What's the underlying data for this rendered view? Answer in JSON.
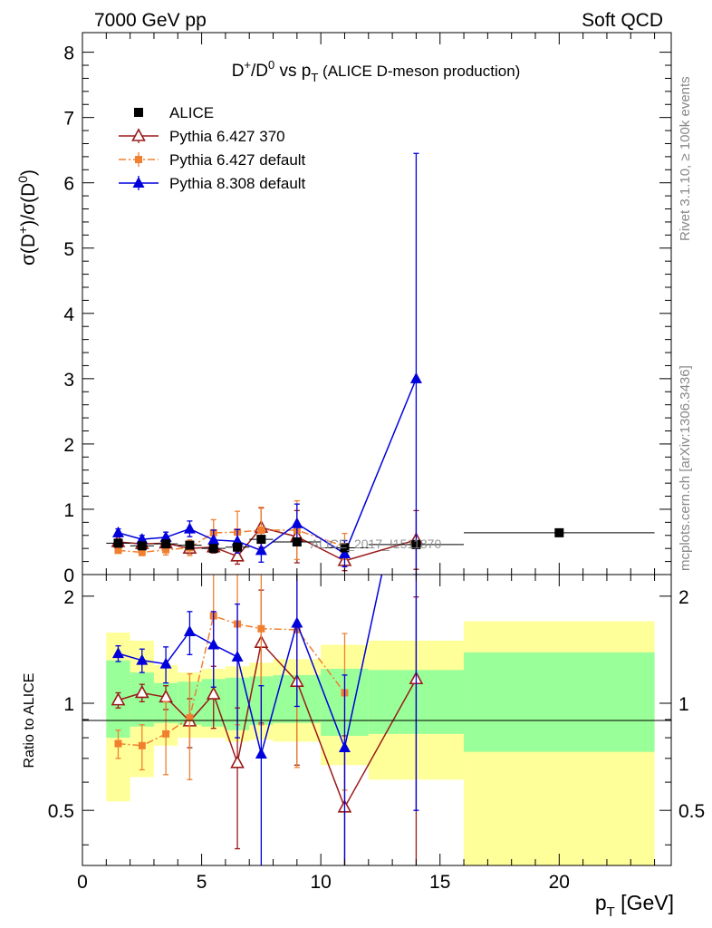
{
  "header": {
    "energy": "7000 GeV pp",
    "process": "Soft QCD"
  },
  "side": {
    "rivet": "Rivet 3.1.10, ≥ 100k events",
    "mcplots": "mcplots.cern.ch [arXiv:1306.3436]"
  },
  "chart_data": {
    "type": "scatter",
    "title": "D⁺/D⁰ vs pT (ALICE D-meson production)",
    "ylabel": "σ(D⁺)/σ(D⁰)",
    "xlabel": "pT [GeV]",
    "ratio_ylabel": "Ratio to ALICE",
    "watermark": "ALICE_2017_I1511870",
    "xlim": [
      0,
      24.7
    ],
    "ylim": [
      0,
      8.3
    ],
    "ratio_ylim": [
      0.35,
      2.3
    ],
    "x_ticks": [
      0,
      5,
      10,
      15,
      20
    ],
    "y_ticks": [
      0,
      1,
      2,
      3,
      4,
      5,
      6,
      7,
      8
    ],
    "ratio_ticks": [
      0.5,
      1,
      2
    ],
    "bands": [
      {
        "x0": 1,
        "x1": 2,
        "g": [
          0.8,
          1.32
        ],
        "y": [
          0.53,
          1.58
        ]
      },
      {
        "x0": 2,
        "x1": 3,
        "g": [
          0.86,
          1.22
        ],
        "y": [
          0.62,
          1.5
        ]
      },
      {
        "x0": 3,
        "x1": 4,
        "g": [
          0.88,
          1.14
        ],
        "y": [
          0.76,
          1.28
        ]
      },
      {
        "x0": 4,
        "x1": 5,
        "g": [
          0.87,
          1.15
        ],
        "y": [
          0.8,
          1.22
        ]
      },
      {
        "x0": 5,
        "x1": 6,
        "g": [
          0.86,
          1.17
        ],
        "y": [
          0.8,
          1.25
        ]
      },
      {
        "x0": 6,
        "x1": 7,
        "g": [
          0.84,
          1.18
        ],
        "y": [
          0.78,
          1.27
        ]
      },
      {
        "x0": 7,
        "x1": 8,
        "g": [
          0.87,
          1.19
        ],
        "y": [
          0.79,
          1.3
        ]
      },
      {
        "x0": 8,
        "x1": 10,
        "g": [
          0.88,
          1.2
        ],
        "y": [
          0.78,
          1.33
        ]
      },
      {
        "x0": 10,
        "x1": 12,
        "g": [
          0.81,
          1.25
        ],
        "y": [
          0.67,
          1.46
        ]
      },
      {
        "x0": 12,
        "x1": 16,
        "g": [
          0.82,
          1.24
        ],
        "y": [
          0.61,
          1.5
        ]
      },
      {
        "x0": 16,
        "x1": 24,
        "g": [
          0.73,
          1.39
        ],
        "y": [
          0.35,
          1.7
        ]
      }
    ],
    "series": [
      {
        "name": "ALICE",
        "color": "#000000",
        "marker": "square",
        "x": [
          1.5,
          2.5,
          3.5,
          4.5,
          5.5,
          6.5,
          7.5,
          9,
          11,
          14,
          20
        ],
        "y": [
          0.48,
          0.44,
          0.47,
          0.45,
          0.4,
          0.42,
          0.54,
          0.5,
          0.41,
          0.46,
          0.64
        ],
        "xerr": [
          0.5,
          0.5,
          0.5,
          0.5,
          0.5,
          0.5,
          0.5,
          1,
          1,
          2,
          4
        ]
      },
      {
        "name": "Pythia 6.427 370",
        "color": "#9a1a1a",
        "marker": "triangle-open",
        "line": "solid",
        "x": [
          1.5,
          2.5,
          3.5,
          4.5,
          5.5,
          6.5,
          7.5,
          9,
          11,
          14
        ],
        "y": [
          0.5,
          0.47,
          0.48,
          0.4,
          0.42,
          0.28,
          0.72,
          0.58,
          0.21,
          0.53
        ],
        "yerr": [
          0.05,
          0.05,
          0.06,
          0.08,
          0.09,
          0.12,
          0.3,
          0.4,
          0.15,
          0.45
        ],
        "ratio": [
          1.02,
          1.07,
          1.04,
          0.89,
          1.06,
          0.68,
          1.48,
          1.15,
          0.51,
          1.17
        ],
        "ratio_err": [
          0.05,
          0.06,
          0.08,
          0.14,
          0.21,
          0.29,
          0.6,
          0.48,
          0.3,
          0.82
        ]
      },
      {
        "name": "Pythia 6.427 default",
        "color": "#f08030",
        "marker": "square-small",
        "line": "dashdot",
        "x": [
          1.5,
          2.5,
          3.5,
          4.5,
          5.5,
          6.5,
          7.5,
          9,
          11
        ],
        "y": [
          0.37,
          0.34,
          0.38,
          0.41,
          0.64,
          0.65,
          0.68,
          0.68,
          0.43
        ],
        "yerr": [
          0.04,
          0.05,
          0.08,
          0.12,
          0.2,
          0.32,
          0.35,
          0.45,
          0.2
        ],
        "ratio": [
          0.77,
          0.76,
          0.82,
          0.91,
          1.76,
          1.67,
          1.62,
          1.61,
          1.07
        ],
        "ratio_err": [
          0.07,
          0.11,
          0.19,
          0.3,
          0.65,
          0.8,
          0.75,
          0.95,
          0.5
        ]
      },
      {
        "name": "Pythia 8.308 default",
        "color": "#0000dd",
        "marker": "triangle",
        "line": "solid",
        "x": [
          1.5,
          2.5,
          3.5,
          4.5,
          5.5,
          6.5,
          7.5,
          9,
          11,
          14
        ],
        "y": [
          0.64,
          0.54,
          0.57,
          0.7,
          0.53,
          0.51,
          0.37,
          0.78,
          0.32,
          3.0
        ],
        "yerr": [
          0.06,
          0.06,
          0.08,
          0.12,
          0.15,
          0.18,
          0.18,
          0.3,
          0.2,
          3.45
        ],
        "ratio": [
          1.38,
          1.32,
          1.29,
          1.59,
          1.46,
          1.35,
          0.72,
          1.68,
          0.75,
          6.5
        ],
        "ratio_err": [
          0.07,
          0.1,
          0.15,
          0.22,
          0.35,
          0.55,
          0.4,
          0.7,
          0.45,
          6.0
        ]
      }
    ]
  }
}
